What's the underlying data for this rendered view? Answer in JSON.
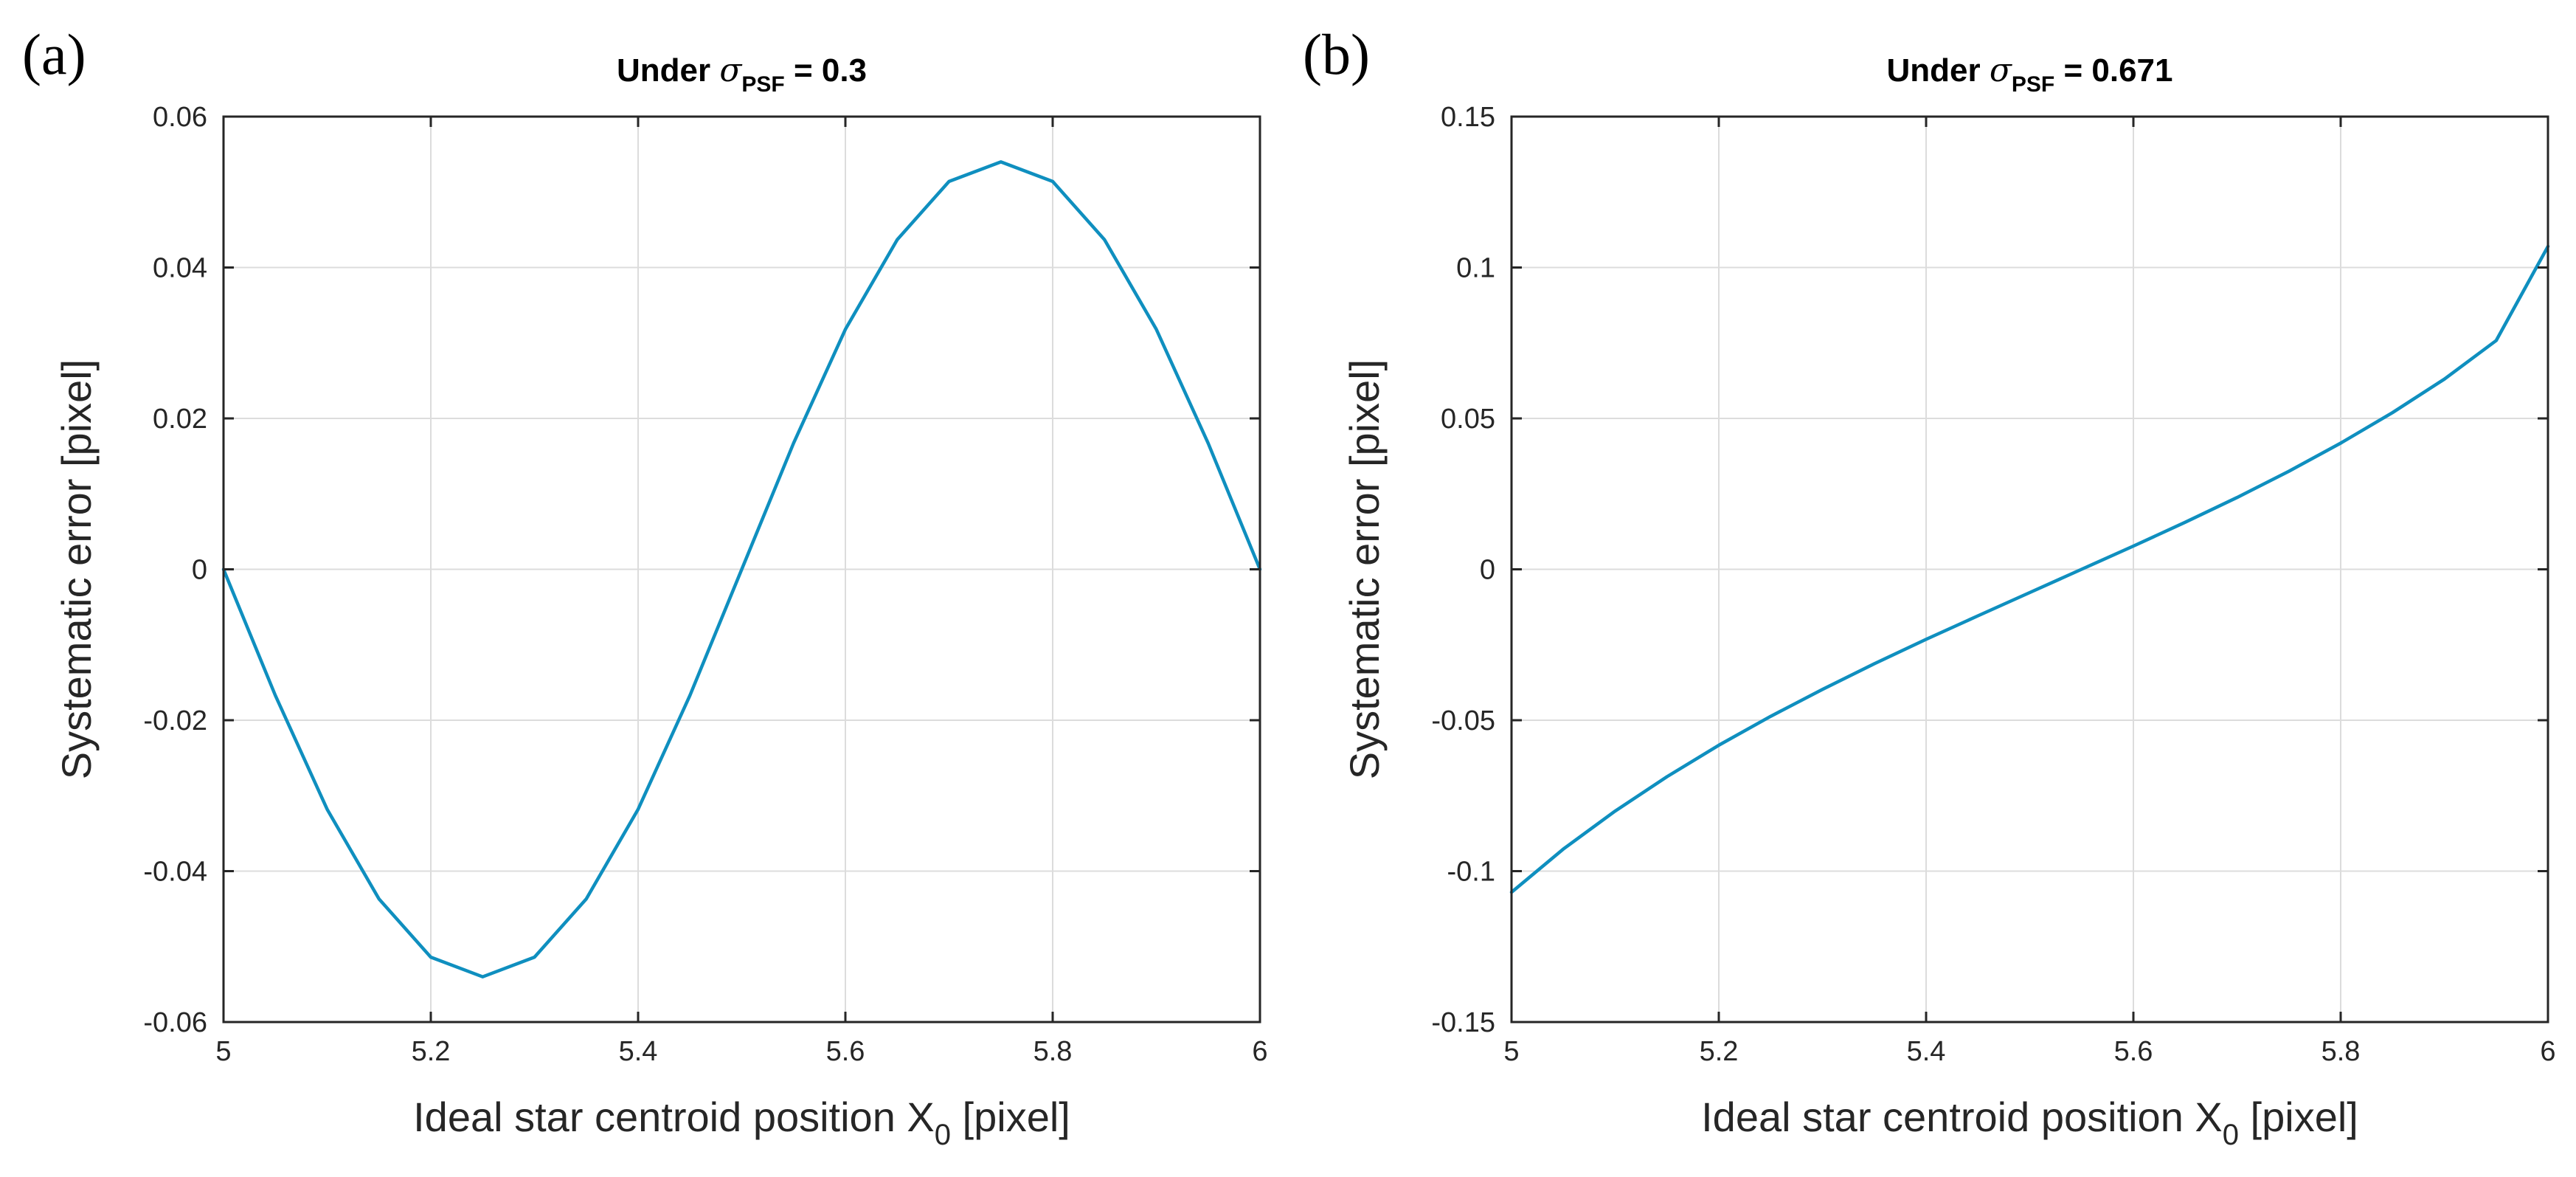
{
  "chart_data": [
    {
      "type": "line",
      "panel_label": "(a)",
      "title": "Under σPSF = 0.3",
      "title_parts": {
        "prefix": "Under ",
        "symbol": "σ",
        "subscript": "PSF",
        "suffix": " = 0.3"
      },
      "xlabel": "Ideal star centroid position X0 [pixel]",
      "xlabel_parts": {
        "prefix": "Ideal star centroid position X",
        "subscript": "0",
        "suffix": " [pixel]"
      },
      "ylabel": "Systematic error [pixel]",
      "xlim": [
        5,
        6
      ],
      "ylim": [
        -0.06,
        0.06
      ],
      "xticks": [
        5,
        5.2,
        5.4,
        5.6,
        5.8,
        6
      ],
      "xtick_labels": [
        "5",
        "5.2",
        "5.4",
        "5.6",
        "5.8",
        "6"
      ],
      "yticks": [
        -0.06,
        -0.04,
        -0.02,
        0,
        0.02,
        0.04,
        0.06
      ],
      "ytick_labels": [
        "-0.06",
        "-0.04",
        "-0.02",
        "0",
        "0.02",
        "0.04",
        "0.06"
      ],
      "grid": true,
      "series": [
        {
          "name": "systematic error",
          "color": "#0f8fbf",
          "x": [
            5.0,
            5.05,
            5.1,
            5.15,
            5.2,
            5.25,
            5.3,
            5.35,
            5.4,
            5.45,
            5.5,
            5.55,
            5.6,
            5.65,
            5.7,
            5.75,
            5.8,
            5.85,
            5.9,
            5.95,
            6.0
          ],
          "y": [
            0.0,
            -0.0167,
            -0.0318,
            -0.0437,
            -0.0514,
            -0.054,
            -0.0514,
            -0.0437,
            -0.0318,
            -0.0167,
            0.0,
            0.0167,
            0.0318,
            0.0437,
            0.0514,
            0.054,
            0.0514,
            0.0437,
            0.0318,
            0.0167,
            0.0
          ]
        }
      ]
    },
    {
      "type": "line",
      "panel_label": "(b)",
      "title": "Under σPSF = 0.671",
      "title_parts": {
        "prefix": "Under ",
        "symbol": "σ",
        "subscript": "PSF",
        "suffix": " = 0.671"
      },
      "xlabel": "Ideal star centroid position X0 [pixel]",
      "xlabel_parts": {
        "prefix": "Ideal star centroid position X",
        "subscript": "0",
        "suffix": " [pixel]"
      },
      "ylabel": "Systematic error [pixel]",
      "xlim": [
        5,
        6
      ],
      "ylim": [
        -0.15,
        0.15
      ],
      "xticks": [
        5,
        5.2,
        5.4,
        5.6,
        5.8,
        6
      ],
      "xtick_labels": [
        "5",
        "5.2",
        "5.4",
        "5.6",
        "5.8",
        "6"
      ],
      "yticks": [
        -0.15,
        -0.1,
        -0.05,
        0,
        0.05,
        0.1,
        0.15
      ],
      "ytick_labels": [
        "-0.15",
        "-0.1",
        "-0.05",
        "0",
        "0.05",
        "0.1",
        "0.15"
      ],
      "grid": true,
      "series": [
        {
          "name": "systematic error",
          "color": "#0f8fbf",
          "x": [
            5.0,
            5.05,
            5.1,
            5.15,
            5.2,
            5.25,
            5.3,
            5.35,
            5.4,
            5.45,
            5.5,
            5.55,
            5.6,
            5.65,
            5.7,
            5.75,
            5.8,
            5.85,
            5.9,
            5.95,
            6.0
          ],
          "y": [
            -0.107,
            -0.0927,
            -0.0801,
            -0.0687,
            -0.0583,
            -0.0487,
            -0.0398,
            -0.0313,
            -0.0232,
            -0.0154,
            -0.0077,
            0.0,
            0.0077,
            0.0156,
            0.0238,
            0.0325,
            0.0418,
            0.0519,
            0.063,
            0.0758,
            0.107
          ]
        }
      ]
    }
  ]
}
